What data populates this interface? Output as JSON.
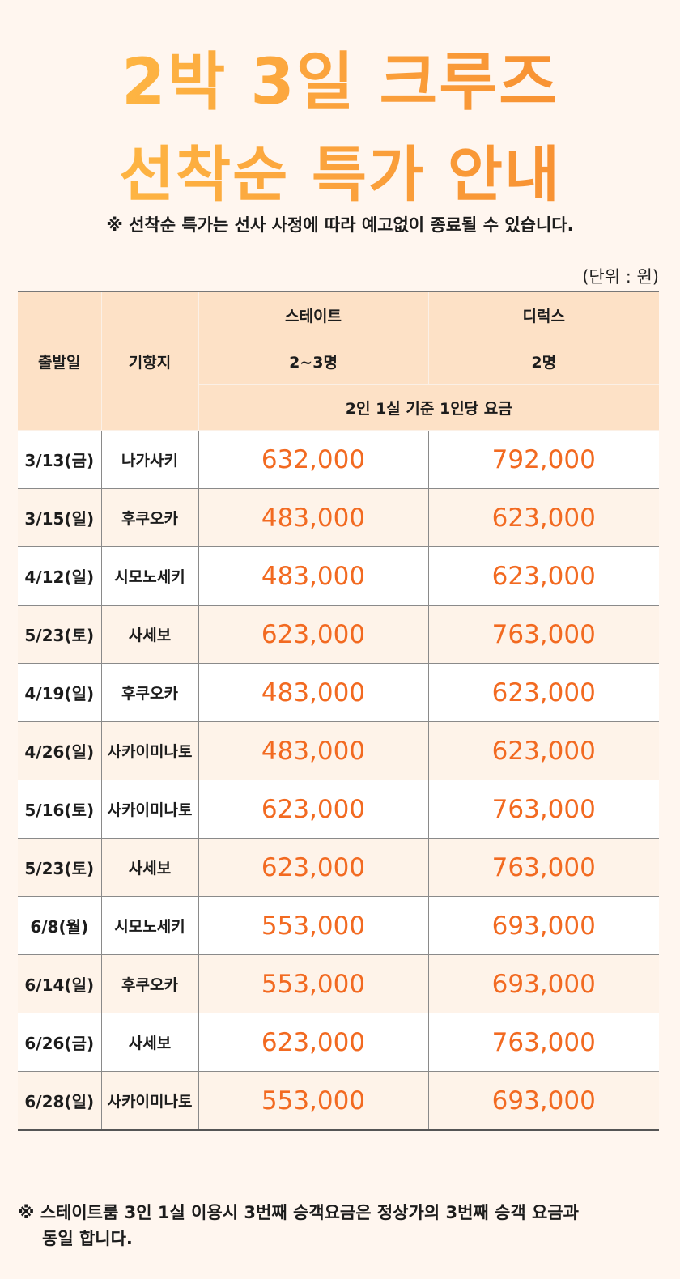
{
  "title": {
    "line1": "2박 3일 크루즈",
    "line2": "선착순 특가 안내"
  },
  "notice": "※ 선착순 특가는 선사 사정에 따라 예고없이 종료될 수 있습니다.",
  "unit": "(단위 : 원)",
  "table": {
    "headers": {
      "date": "출발일",
      "destination": "기항지",
      "state_room": "스테이트",
      "state_capacity": "2~3명",
      "deluxe_room": "디럭스",
      "deluxe_capacity": "2명",
      "basis": "2인 1실 기준 1인당 요금"
    },
    "rows": [
      {
        "date": "3/13(금)",
        "destination": "나가사키",
        "state": "632,000",
        "deluxe": "792,000"
      },
      {
        "date": "3/15(일)",
        "destination": "후쿠오카",
        "state": "483,000",
        "deluxe": "623,000"
      },
      {
        "date": "4/12(일)",
        "destination": "시모노세키",
        "state": "483,000",
        "deluxe": "623,000"
      },
      {
        "date": "5/23(토)",
        "destination": "사세보",
        "state": "623,000",
        "deluxe": "763,000"
      },
      {
        "date": "4/19(일)",
        "destination": "후쿠오카",
        "state": "483,000",
        "deluxe": "623,000"
      },
      {
        "date": "4/26(일)",
        "destination": "사카이미나토",
        "state": "483,000",
        "deluxe": "623,000"
      },
      {
        "date": "5/16(토)",
        "destination": "사카이미나토",
        "state": "623,000",
        "deluxe": "763,000"
      },
      {
        "date": "5/23(토)",
        "destination": "사세보",
        "state": "623,000",
        "deluxe": "763,000"
      },
      {
        "date": "6/8(월)",
        "destination": "시모노세키",
        "state": "553,000",
        "deluxe": "693,000"
      },
      {
        "date": "6/14(일)",
        "destination": "후쿠오카",
        "state": "553,000",
        "deluxe": "693,000"
      },
      {
        "date": "6/26(금)",
        "destination": "사세보",
        "state": "623,000",
        "deluxe": "763,000"
      },
      {
        "date": "6/28(일)",
        "destination": "사카이미나토",
        "state": "553,000",
        "deluxe": "693,000"
      }
    ]
  },
  "footnote": {
    "line1": "※ 스테이트룸 3인 1실 이용시 3번째 승객요금은 정상가의 3번째 승객 요금과",
    "line2": "동일 합니다."
  },
  "colors": {
    "title_gradient_start": "#ffbf46",
    "title_gradient_end": "#f6892e",
    "price": "#f26a21",
    "header_bg": "#fde1c6",
    "page_bg": "#fff6ef"
  }
}
